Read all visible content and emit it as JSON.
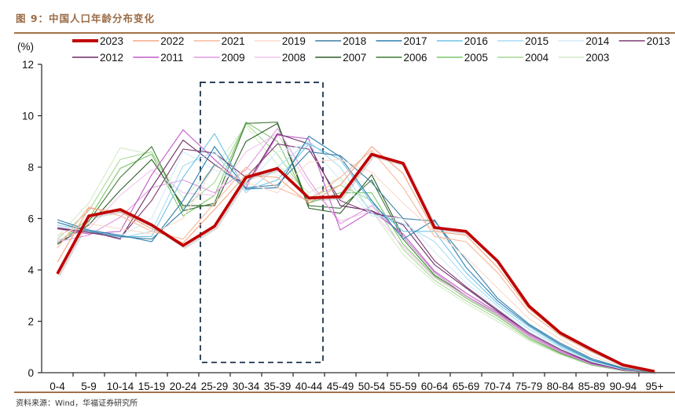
{
  "figure": {
    "title": "图 9：中国人口年龄分布变化",
    "source": "资料来源：Wind，华福证券研究所"
  },
  "chart_data": {
    "type": "line",
    "title": "中国人口年龄分布变化",
    "xlabel": "",
    "ylabel": "(%)",
    "ylim": [
      0,
      12
    ],
    "yticks": [
      0,
      2,
      4,
      6,
      8,
      10,
      12
    ],
    "grid": false,
    "legend_position": "top",
    "categories": [
      "0-4",
      "5-9",
      "10-14",
      "15-19",
      "20-24",
      "25-29",
      "30-34",
      "35-39",
      "40-44",
      "45-49",
      "50-54",
      "55-59",
      "60-64",
      "65-69",
      "70-74",
      "75-79",
      "80-84",
      "85-89",
      "90-94",
      "95+"
    ],
    "highlight_box": {
      "from_category": "25-29",
      "to_category": "40-44",
      "y_range": [
        0.4,
        11.3
      ],
      "style": "dashed",
      "color": "#1f3550"
    },
    "series": [
      {
        "name": "2023",
        "color": "#c00000",
        "emphasis": true,
        "values": [
          3.85,
          6.1,
          6.35,
          5.75,
          4.95,
          5.7,
          7.6,
          7.95,
          6.8,
          6.85,
          8.5,
          8.15,
          5.65,
          5.5,
          4.35,
          2.6,
          1.55,
          0.9,
          0.3,
          0.05
        ]
      },
      {
        "name": "2022",
        "color": "#f4a582",
        "values": [
          4.3,
          6.4,
          6.25,
          5.6,
          5.05,
          6.35,
          7.7,
          7.6,
          6.6,
          7.3,
          8.8,
          7.75,
          5.5,
          5.35,
          4.1,
          2.5,
          1.5,
          0.85,
          0.3,
          0.05
        ]
      },
      {
        "name": "2021",
        "color": "#f7b89a",
        "values": [
          4.85,
          6.45,
          6.1,
          5.5,
          5.2,
          6.6,
          8.0,
          7.2,
          6.7,
          7.6,
          8.65,
          7.2,
          5.3,
          5.1,
          3.9,
          2.35,
          1.45,
          0.8,
          0.28,
          0.05
        ]
      },
      {
        "name": "2019",
        "color": "#fbdacb",
        "values": [
          5.35,
          5.8,
          5.6,
          5.4,
          6.0,
          8.05,
          7.4,
          7.0,
          8.2,
          8.3,
          7.8,
          6.6,
          5.5,
          4.5,
          3.3,
          2.1,
          1.3,
          0.65,
          0.22,
          0.04
        ]
      },
      {
        "name": "2018",
        "color": "#3d7fa6",
        "values": [
          5.85,
          5.5,
          5.3,
          5.2,
          6.3,
          8.1,
          7.2,
          7.3,
          8.6,
          8.45,
          7.4,
          6.0,
          5.9,
          4.4,
          2.9,
          1.9,
          1.15,
          0.55,
          0.18,
          0.03
        ]
      },
      {
        "name": "2017",
        "color": "#2b7fb0",
        "values": [
          5.95,
          5.55,
          5.35,
          5.1,
          6.7,
          8.8,
          7.15,
          7.2,
          9.2,
          8.4,
          6.7,
          5.2,
          5.95,
          4.1,
          2.8,
          1.85,
          1.1,
          0.5,
          0.16,
          0.03
        ]
      },
      {
        "name": "2016",
        "color": "#6fc3e6",
        "values": [
          5.85,
          5.5,
          5.3,
          5.3,
          7.6,
          9.3,
          7.1,
          7.5,
          8.9,
          8.3,
          6.6,
          5.5,
          5.5,
          3.9,
          2.7,
          1.8,
          1.05,
          0.48,
          0.15,
          0.03
        ]
      },
      {
        "name": "2015",
        "color": "#a8dcf2",
        "values": [
          5.75,
          5.55,
          5.25,
          5.5,
          8.05,
          8.6,
          7.0,
          8.0,
          9.0,
          8.0,
          6.2,
          5.8,
          5.1,
          3.7,
          2.6,
          1.7,
          1.0,
          0.45,
          0.14,
          0.02
        ]
      },
      {
        "name": "2014",
        "color": "#d3ecf8",
        "values": [
          5.7,
          5.5,
          5.3,
          6.0,
          8.6,
          7.9,
          7.3,
          8.6,
          8.9,
          7.5,
          6.1,
          6.0,
          4.7,
          3.5,
          2.5,
          1.6,
          0.95,
          0.42,
          0.13,
          0.02
        ]
      },
      {
        "name": "2013",
        "color": "#7b3a6e",
        "values": [
          5.65,
          5.45,
          5.25,
          6.7,
          8.7,
          8.55,
          7.6,
          8.9,
          8.7,
          6.7,
          6.2,
          6.0,
          4.35,
          3.35,
          2.45,
          1.55,
          0.9,
          0.4,
          0.12,
          0.02
        ]
      },
      {
        "name": "2012",
        "color": "#6b2a66",
        "values": [
          5.6,
          5.5,
          5.2,
          7.2,
          9.05,
          8.1,
          7.3,
          9.3,
          8.9,
          6.5,
          6.3,
          5.75,
          4.2,
          3.3,
          2.4,
          1.55,
          0.9,
          0.38,
          0.11,
          0.02
        ]
      },
      {
        "name": "2011",
        "color": "#c25cc8",
        "values": [
          5.6,
          5.4,
          5.5,
          7.7,
          9.45,
          8.3,
          7.2,
          9.25,
          9.1,
          5.55,
          6.3,
          5.4,
          3.95,
          3.1,
          2.35,
          1.5,
          0.85,
          0.36,
          0.1,
          0.02
        ]
      },
      {
        "name": "2009",
        "color": "#e09ae0",
        "values": [
          5.1,
          5.35,
          6.05,
          7.2,
          7.5,
          7.0,
          7.9,
          9.5,
          7.5,
          5.8,
          6.5,
          5.3,
          3.9,
          3.0,
          2.3,
          1.45,
          0.8,
          0.34,
          0.1,
          0.02
        ]
      },
      {
        "name": "2008",
        "color": "#f2c6ea",
        "values": [
          5.15,
          5.6,
          6.9,
          7.9,
          7.0,
          6.9,
          8.6,
          9.3,
          7.3,
          5.9,
          6.3,
          4.9,
          3.7,
          2.95,
          2.25,
          1.4,
          0.8,
          0.33,
          0.09,
          0.02
        ]
      },
      {
        "name": "2007",
        "color": "#2e5e2a",
        "values": [
          5.0,
          5.75,
          7.1,
          8.3,
          6.5,
          6.5,
          9.0,
          9.7,
          6.4,
          6.2,
          7.7,
          5.3,
          3.9,
          3.0,
          2.3,
          1.45,
          0.8,
          0.33,
          0.09,
          0.02
        ]
      },
      {
        "name": "2006",
        "color": "#3f7a36",
        "values": [
          5.0,
          5.9,
          7.6,
          8.8,
          6.3,
          6.6,
          9.7,
          9.75,
          6.5,
          6.4,
          7.5,
          5.2,
          3.8,
          3.0,
          2.25,
          1.4,
          0.78,
          0.32,
          0.09,
          0.02
        ]
      },
      {
        "name": "2005",
        "color": "#7cc96a",
        "values": [
          5.05,
          6.0,
          7.95,
          8.5,
          6.1,
          6.9,
          9.75,
          9.0,
          6.6,
          7.0,
          7.0,
          5.0,
          3.75,
          2.9,
          2.2,
          1.35,
          0.76,
          0.31,
          0.08,
          0.02
        ]
      },
      {
        "name": "2004",
        "color": "#a6d996",
        "values": [
          5.2,
          6.3,
          8.3,
          8.6,
          6.4,
          7.4,
          9.7,
          8.5,
          6.8,
          7.3,
          6.7,
          4.8,
          3.6,
          2.8,
          2.1,
          1.3,
          0.73,
          0.3,
          0.08,
          0.02
        ]
      },
      {
        "name": "2003",
        "color": "#d5ecc8",
        "values": [
          5.3,
          6.6,
          8.75,
          8.5,
          6.8,
          8.0,
          9.6,
          8.1,
          7.0,
          7.6,
          6.3,
          4.6,
          3.5,
          2.7,
          2.0,
          1.25,
          0.7,
          0.28,
          0.07,
          0.02
        ]
      }
    ]
  }
}
